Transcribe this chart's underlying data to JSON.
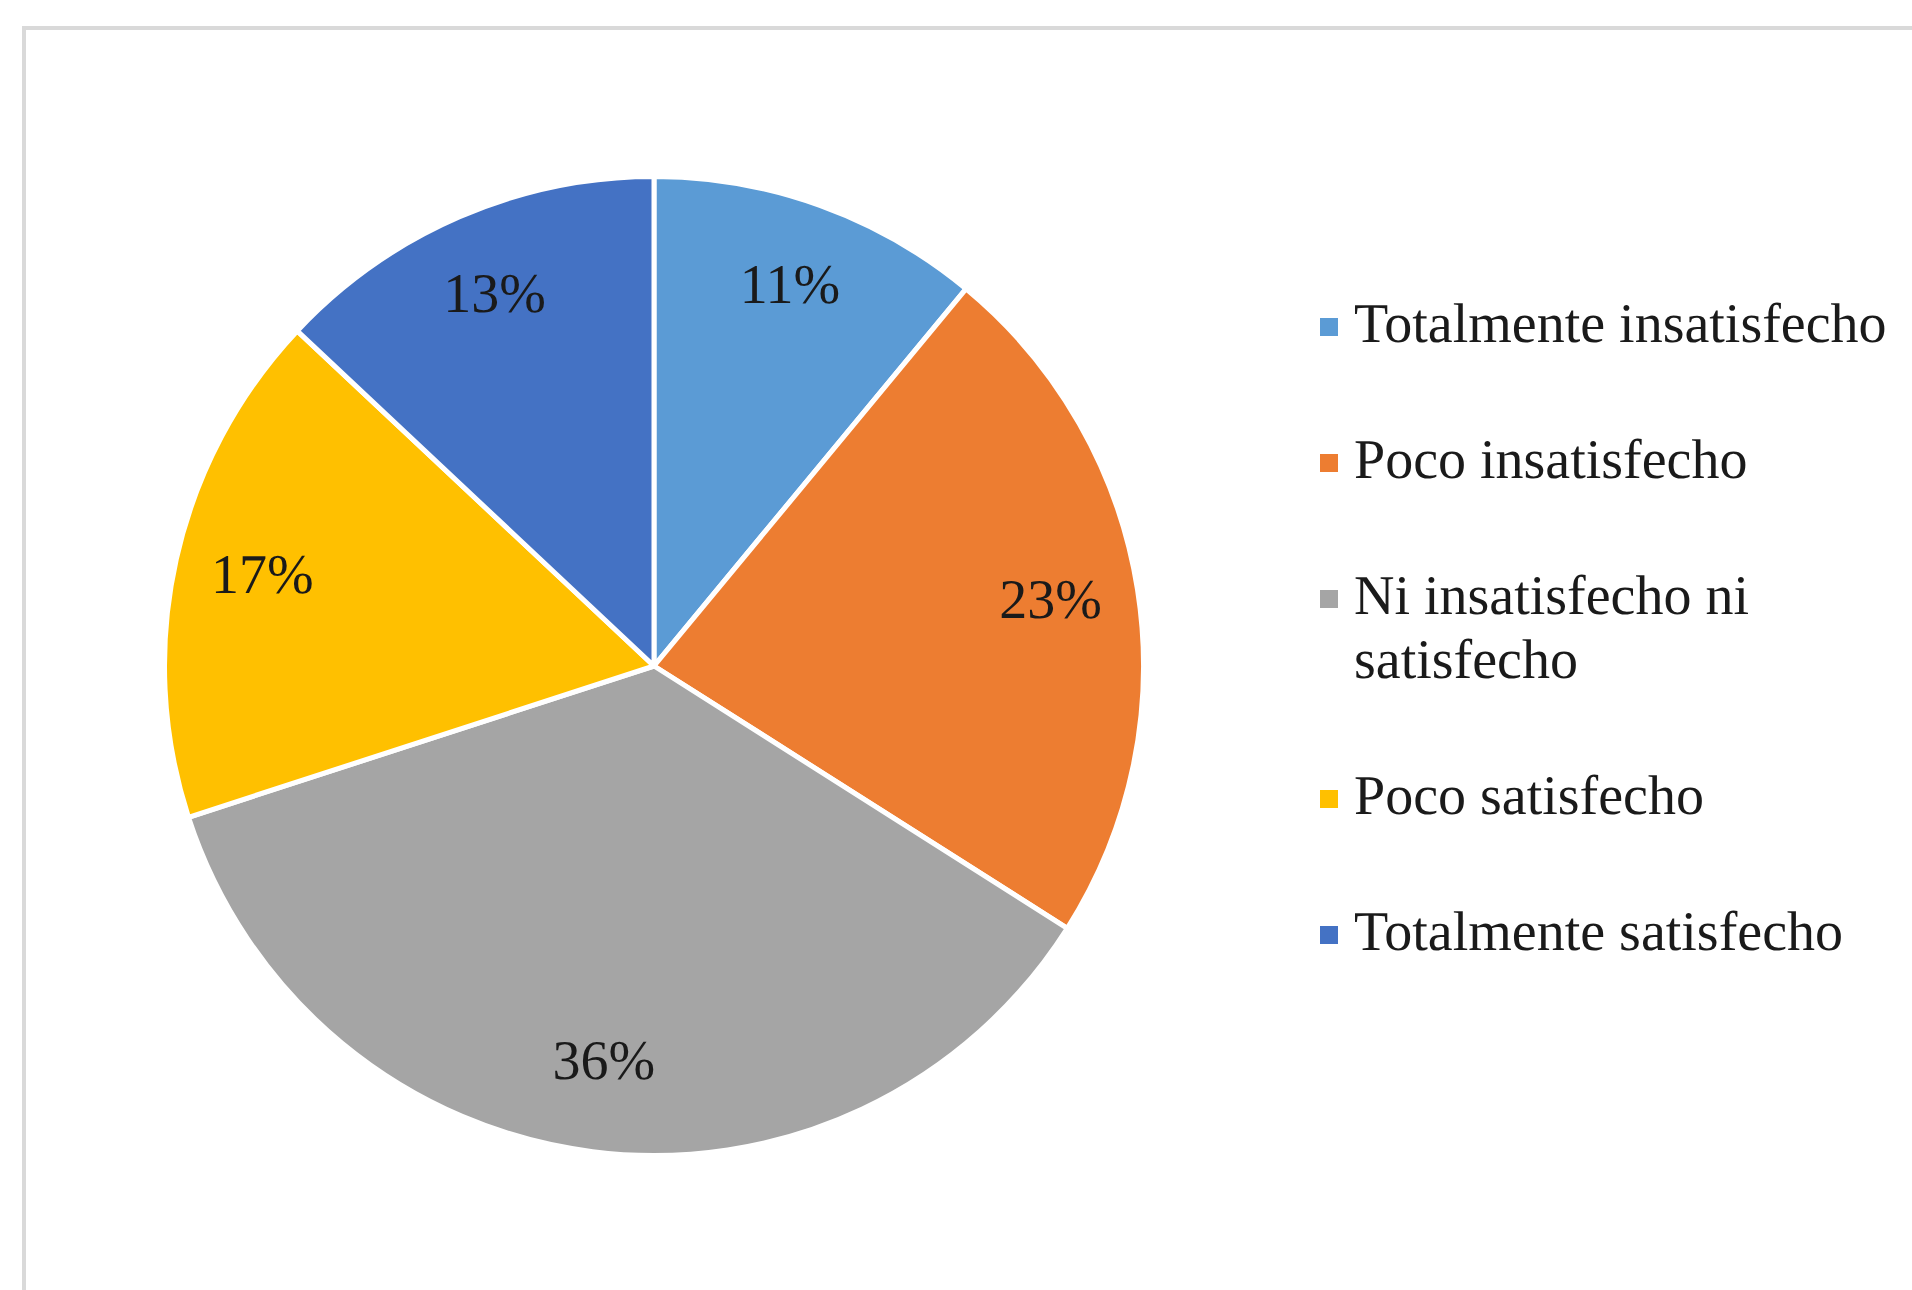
{
  "chart_data": {
    "type": "pie",
    "categories": [
      "Totalmente insatisfecho",
      "Poco insatisfecho",
      "Ni insatisfecho ni satisfecho",
      "Poco satisfecho",
      "Totalmente satisfecho"
    ],
    "values": [
      11,
      23,
      36,
      17,
      13
    ],
    "colors": [
      "#5b9bd5",
      "#ed7d31",
      "#a5a5a5",
      "#ffc000",
      "#4472c4"
    ],
    "value_labels": [
      "11%",
      "23%",
      "36%",
      "17%",
      "13%"
    ],
    "legend": "right"
  }
}
